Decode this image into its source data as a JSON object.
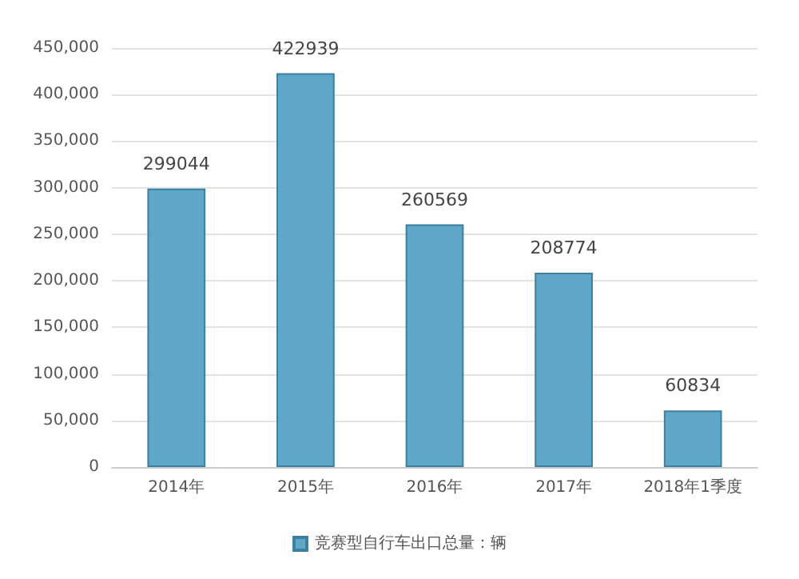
{
  "chart_data": {
    "type": "bar",
    "categories": [
      "2014年",
      "2015年",
      "2016年",
      "2017年",
      "2018年1季度"
    ],
    "series": [
      {
        "name": "竞赛型自行车出口总量：辆",
        "color": "#5ea7c8",
        "values": [
          299044,
          422939,
          260569,
          208774,
          60834
        ]
      }
    ],
    "ylim": [
      0,
      450000
    ],
    "yticks": [
      0,
      {
        "value": 50000,
        "label": "50,000"
      },
      {
        "value": 100000,
        "label": "100,000"
      },
      {
        "value": 150000,
        "label": "150,000"
      },
      {
        "value": 200000,
        "label": "200,000"
      },
      {
        "value": 250000,
        "label": "250,000"
      },
      {
        "value": 300000,
        "label": "300,000"
      },
      {
        "value": 350000,
        "label": "350,000"
      },
      {
        "value": 400000,
        "label": "400,000"
      },
      {
        "value": 450000,
        "label": "450,000"
      }
    ],
    "grid": "y",
    "legend": "bottom",
    "data_labels": true
  }
}
